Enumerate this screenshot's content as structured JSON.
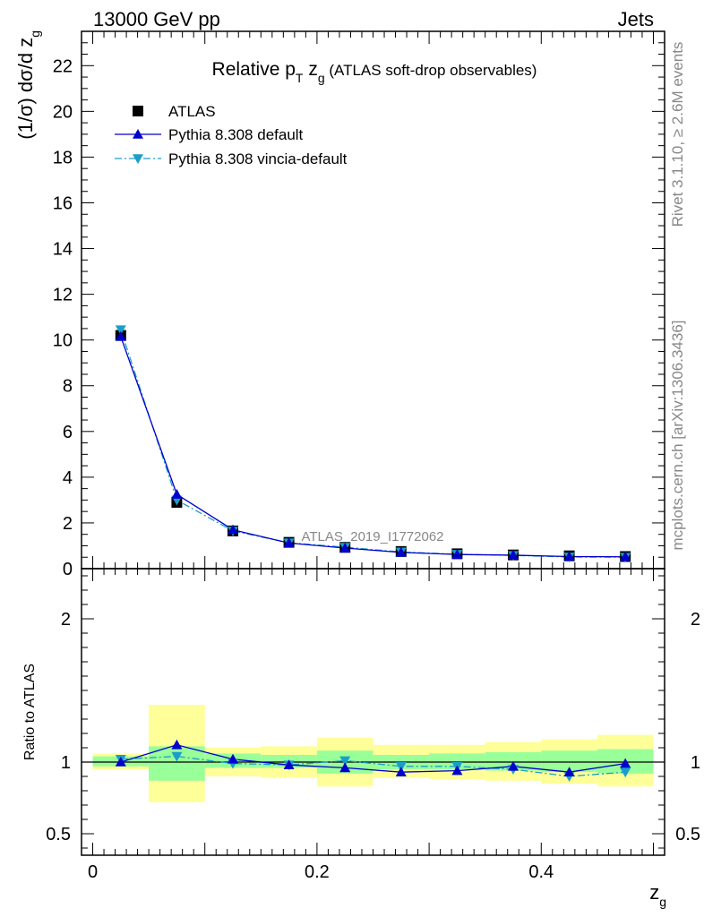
{
  "header": {
    "left": "13000 GeV pp",
    "right": "Jets"
  },
  "side_text": {
    "rivet": "Rivet 3.1.10, ≥ 2.6M events",
    "mcplots": "mcplots.cern.ch [arXiv:1306.3436]"
  },
  "chart_data": [
    {
      "type": "scatter",
      "title_main": "Relative p",
      "title_sub_T": "T",
      "title_z": " z",
      "title_sub_g": "g",
      "title_tail": " (ATLAS soft-drop observables)",
      "ylabel": "(1/σ) dσ/d z",
      "ylabel_sub": "g",
      "analysis_label": "ATLAS_2019_I1772062",
      "ylim": [
        0,
        23.5
      ],
      "yticks": [
        0,
        2,
        4,
        6,
        8,
        10,
        12,
        14,
        16,
        18,
        20,
        22
      ],
      "xlim": [
        0,
        0.5
      ],
      "legend_placement": "top-left",
      "x": [
        0.025,
        0.075,
        0.125,
        0.175,
        0.225,
        0.275,
        0.325,
        0.375,
        0.425,
        0.475
      ],
      "series": [
        {
          "name": "ATLAS",
          "style": "square",
          "color": "#000000",
          "values": [
            10.2,
            2.9,
            1.65,
            1.15,
            0.93,
            0.75,
            0.65,
            0.6,
            0.56,
            0.53
          ]
        },
        {
          "name": "Pythia 8.308 default",
          "style": "solid-triangle-up",
          "color": "#0000cc",
          "values": [
            10.15,
            3.25,
            1.7,
            1.12,
            0.9,
            0.71,
            0.62,
            0.59,
            0.53,
            0.52
          ]
        },
        {
          "name": "Pythia 8.308 vincia-default",
          "style": "dashdot-triangle-down",
          "color": "#1a9ec9",
          "values": [
            10.45,
            3.0,
            1.65,
            1.13,
            0.94,
            0.73,
            0.63,
            0.58,
            0.51,
            0.5
          ]
        }
      ]
    },
    {
      "type": "scatter",
      "ylabel": "Ratio to ATLAS",
      "xlabel": "z",
      "xlabel_sub": "g",
      "ylim": [
        0.35,
        2.35
      ],
      "yticks": [
        0.5,
        1,
        2
      ],
      "ytick_labels": [
        "0.5",
        "1",
        "2"
      ],
      "xlim": [
        -0.01,
        0.51
      ],
      "xticks": [
        0,
        0.2,
        0.4
      ],
      "xtick_labels": [
        "0",
        "0.2",
        "0.4"
      ],
      "band_colors": {
        "outer": "#ffff99",
        "inner": "#99ff99"
      },
      "bins": [
        {
          "lo": 0.0,
          "hi": 0.05,
          "inner": [
            0.97,
            1.04
          ],
          "outer": [
            0.95,
            1.06
          ]
        },
        {
          "lo": 0.05,
          "hi": 0.1,
          "inner": [
            0.87,
            1.11
          ],
          "outer": [
            0.72,
            1.4
          ]
        },
        {
          "lo": 0.1,
          "hi": 0.15,
          "inner": [
            0.96,
            1.06
          ],
          "outer": [
            0.9,
            1.1
          ]
        },
        {
          "lo": 0.15,
          "hi": 0.2,
          "inner": [
            0.96,
            1.05
          ],
          "outer": [
            0.89,
            1.11
          ]
        },
        {
          "lo": 0.2,
          "hi": 0.25,
          "inner": [
            0.92,
            1.08
          ],
          "outer": [
            0.83,
            1.17
          ]
        },
        {
          "lo": 0.25,
          "hi": 0.3,
          "inner": [
            0.95,
            1.05
          ],
          "outer": [
            0.89,
            1.12
          ]
        },
        {
          "lo": 0.3,
          "hi": 0.35,
          "inner": [
            0.95,
            1.06
          ],
          "outer": [
            0.88,
            1.12
          ]
        },
        {
          "lo": 0.35,
          "hi": 0.4,
          "inner": [
            0.94,
            1.07
          ],
          "outer": [
            0.87,
            1.14
          ]
        },
        {
          "lo": 0.4,
          "hi": 0.45,
          "inner": [
            0.93,
            1.08
          ],
          "outer": [
            0.85,
            1.16
          ]
        },
        {
          "lo": 0.45,
          "hi": 0.5,
          "inner": [
            0.92,
            1.09
          ],
          "outer": [
            0.83,
            1.19
          ]
        }
      ],
      "x": [
        0.025,
        0.075,
        0.125,
        0.175,
        0.225,
        0.275,
        0.325,
        0.375,
        0.425,
        0.475
      ],
      "series": [
        {
          "name": "Pythia 8.308 default",
          "color": "#0000cc",
          "values": [
            1.0,
            1.12,
            1.02,
            0.98,
            0.96,
            0.93,
            0.94,
            0.97,
            0.93,
            0.99
          ]
        },
        {
          "name": "Pythia 8.308 vincia-default",
          "color": "#1a9ec9",
          "values": [
            1.02,
            1.04,
            0.99,
            0.98,
            1.01,
            0.97,
            0.97,
            0.95,
            0.9,
            0.93
          ]
        }
      ]
    }
  ]
}
